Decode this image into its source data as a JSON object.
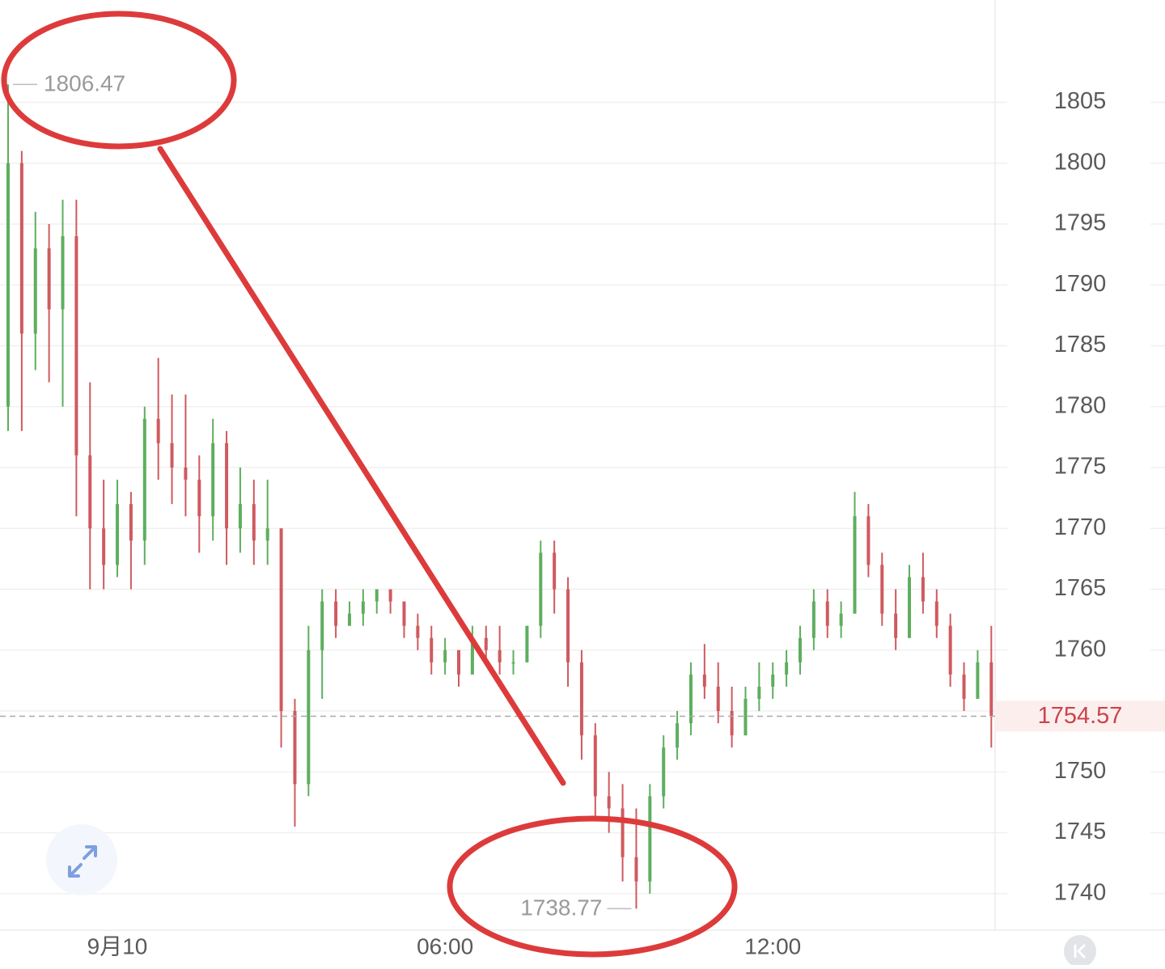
{
  "chart_data": {
    "type": "candlestick",
    "x": [
      -2,
      -1.75,
      -1.5,
      -1.25,
      -1,
      -0.75,
      -0.5,
      -0.25,
      0,
      0.25,
      0.5,
      0.75,
      1,
      1.25,
      1.5,
      1.75,
      2,
      2.25,
      2.5,
      2.75,
      3,
      3.25,
      3.5,
      3.75,
      4,
      4.25,
      4.5,
      4.75,
      5,
      5.25,
      5.5,
      5.75,
      6,
      6.25,
      6.5,
      6.75,
      7,
      7.25,
      7.5,
      7.75,
      8,
      8.25,
      8.5,
      8.75,
      9,
      9.25,
      9.5,
      9.75,
      10,
      10.25,
      10.5,
      10.75,
      11,
      11.25,
      11.5,
      11.75,
      12,
      12.25,
      12.5,
      12.75,
      13,
      13.25,
      13.5,
      13.75,
      14,
      14.25,
      14.5,
      14.75,
      15,
      15.25,
      15.5,
      15.75,
      16
    ],
    "open": [
      1780,
      1800,
      1786,
      1793,
      1788,
      1794,
      1776,
      1770,
      1767,
      1772,
      1769,
      1779,
      1777,
      1775,
      1774,
      1771,
      1777,
      1770,
      1772,
      1769,
      1770,
      1755,
      1749,
      1760,
      1764,
      1762,
      1763,
      1764,
      1765,
      1764,
      1762,
      1761,
      1759,
      1760,
      1758,
      1761,
      1760,
      1759,
      1759,
      1762,
      1768,
      1765,
      1759,
      1753,
      1748,
      1747,
      1743,
      1741,
      1748,
      1752,
      1754,
      1758,
      1757,
      1755,
      1753,
      1756,
      1757,
      1758,
      1759,
      1761,
      1764,
      1762,
      1763,
      1771,
      1767,
      1763,
      1761,
      1766,
      1764,
      1762,
      1758,
      1756,
      1759
    ],
    "high": [
      1806.47,
      1801,
      1796,
      1795,
      1797,
      1797,
      1782,
      1774,
      1774,
      1773,
      1780,
      1784,
      1781,
      1781,
      1776,
      1779,
      1778,
      1775,
      1774,
      1774,
      1770,
      1756,
      1762,
      1765,
      1765,
      1764,
      1765,
      1765,
      1765,
      1764,
      1763,
      1762,
      1761,
      1760,
      1762,
      1762,
      1762,
      1760,
      1762,
      1769,
      1769,
      1766,
      1760,
      1754,
      1750,
      1749,
      1747,
      1749,
      1753,
      1755,
      1759,
      1760.5,
      1759,
      1757,
      1757,
      1759,
      1759,
      1760,
      1762,
      1765,
      1765,
      1764,
      1773,
      1772,
      1768,
      1765,
      1767,
      1768,
      1765,
      1763,
      1759,
      1760,
      1762
    ],
    "low": [
      1778,
      1778,
      1783,
      1782,
      1780,
      1771,
      1765,
      1765,
      1766,
      1765,
      1767,
      1774,
      1772,
      1771,
      1768,
      1769,
      1767,
      1768,
      1767,
      1767,
      1752,
      1745.5,
      1748,
      1756,
      1761,
      1762,
      1762,
      1763,
      1763,
      1761,
      1760,
      1758,
      1758,
      1757,
      1758,
      1759,
      1758,
      1758,
      1759,
      1761,
      1763,
      1757,
      1751,
      1746,
      1745,
      1741,
      1738.77,
      1740,
      1747,
      1751,
      1753,
      1756,
      1754,
      1752,
      1753,
      1755,
      1756,
      1757,
      1758,
      1760,
      1761,
      1761,
      1763,
      1766,
      1762,
      1760,
      1761,
      1763,
      1761,
      1757,
      1755,
      1756,
      1752
    ],
    "close": [
      1800,
      1786,
      1793,
      1788,
      1794,
      1776,
      1770,
      1767,
      1772,
      1769,
      1779,
      1777,
      1775,
      1774,
      1771,
      1777,
      1770,
      1772,
      1769,
      1770,
      1755,
      1749,
      1760,
      1764,
      1762,
      1763,
      1764,
      1765,
      1764,
      1762,
      1761,
      1759,
      1760,
      1758,
      1761,
      1760,
      1759,
      1759,
      1762,
      1768,
      1765,
      1759,
      1753,
      1748,
      1747,
      1743,
      1741,
      1748,
      1752,
      1754,
      1758,
      1757,
      1755,
      1753,
      1756,
      1757,
      1758,
      1759,
      1761,
      1764,
      1762,
      1763,
      1771,
      1767,
      1763,
      1761,
      1766,
      1764,
      1762,
      1758,
      1756,
      1759,
      1754.57
    ],
    "up_color": "#5eae5e",
    "down_color": "#cf5a5f",
    "xlim": [
      -2.148,
      16.04
    ],
    "xticks": [
      {
        "value": 0,
        "label": "9月10"
      },
      {
        "value": 6,
        "label": "06:00"
      },
      {
        "value": 12,
        "label": "12:00"
      }
    ],
    "ylim": [
      1737,
      1813.4
    ],
    "yticks": [
      1740,
      1745,
      1750,
      1755,
      1760,
      1765,
      1770,
      1775,
      1780,
      1785,
      1790,
      1795,
      1800,
      1805
    ],
    "grid": true
  }
}
